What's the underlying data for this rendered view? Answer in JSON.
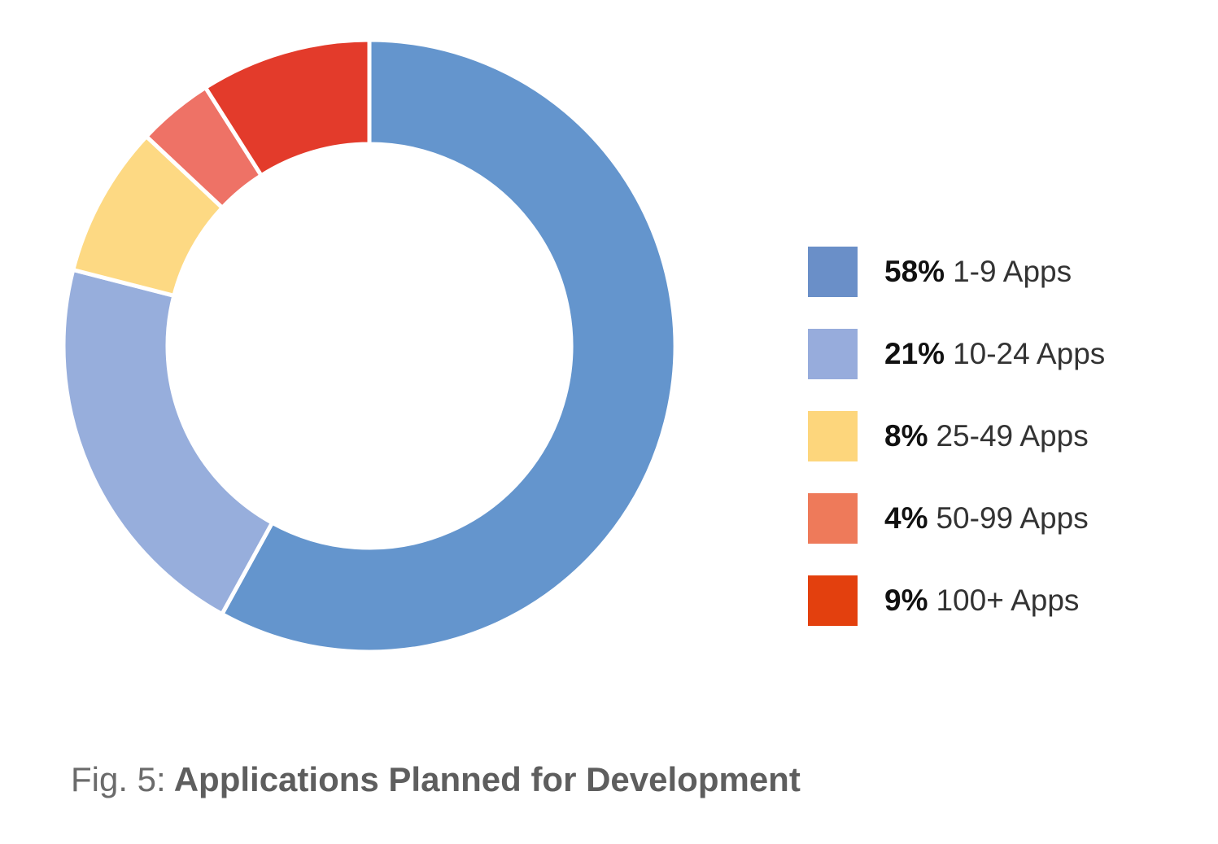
{
  "chart_data": {
    "type": "pie",
    "donut": true,
    "title_prefix": "Fig. 5:",
    "title": "Applications Planned for Development",
    "slices": [
      {
        "pct_label": "58%",
        "label": "1-9 Apps",
        "value": 58,
        "color": "#6495cd",
        "legend_color": "#6a8fc8"
      },
      {
        "pct_label": "21%",
        "label": "10-24 Apps",
        "value": 21,
        "color": "#97aedc",
        "legend_color": "#97acdc"
      },
      {
        "pct_label": "8%",
        "label": "25-49 Apps",
        "value": 8,
        "color": "#fdd983",
        "legend_color": "#fdd67c"
      },
      {
        "pct_label": "4%",
        "label": "50-99 Apps",
        "value": 4,
        "color": "#ee7266",
        "legend_color": "#ee7a5a"
      },
      {
        "pct_label": "9%",
        "label": "100+ Apps",
        "value": 9,
        "color": "#e33b2b",
        "legend_color": "#e3400e"
      }
    ],
    "legend_position": "right"
  }
}
